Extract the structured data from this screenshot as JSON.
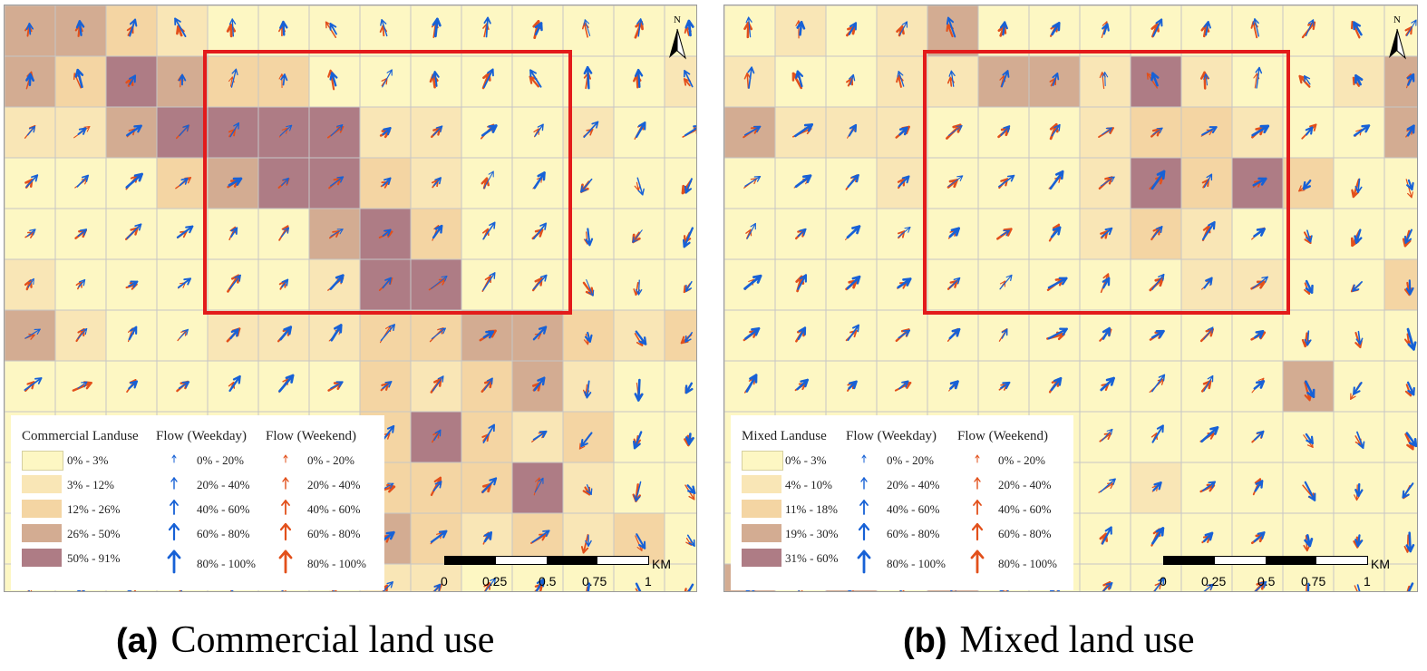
{
  "colors": {
    "landuse": [
      "#fdf7c3",
      "#f9e6b6",
      "#f4d5a3",
      "#d3ac92",
      "#ae7c85"
    ],
    "grid_line": "#c6c6c6",
    "weekday_arrow": "#1761d6",
    "weekend_arrow": "#e2501b",
    "focus_box": "#e31b1b"
  },
  "icons": {
    "north_arrow": "north-arrow-icon",
    "flow_weekday": "blue-arrow-icon",
    "flow_weekend": "orange-arrow-icon"
  },
  "panel_a": {
    "caption_letter": "(a)",
    "caption_text": "Commercial land use",
    "north": "N",
    "legend": {
      "landuse_title": "Commercial Landuse",
      "weekday_title": "Flow (Weekday)",
      "weekend_title": "Flow (Weekend)",
      "landuse_classes": [
        "0% - 3%",
        "3% - 12%",
        "12% - 26%",
        "26% - 50%",
        "50% - 91%"
      ],
      "flow_classes": [
        "0% - 20%",
        "20% - 40%",
        "40% - 60%",
        "60% - 80%",
        "80% - 100%"
      ]
    },
    "scale": {
      "ticks": [
        "0",
        "0.25",
        "0.5",
        "0.75",
        "1"
      ],
      "unit": "KM"
    },
    "landuse_grid": [
      [
        3,
        3,
        2,
        1,
        0,
        0,
        0,
        0,
        0,
        0,
        0,
        0,
        0,
        0
      ],
      [
        3,
        2,
        4,
        3,
        2,
        2,
        0,
        0,
        0,
        0,
        0,
        0,
        0,
        1
      ],
      [
        1,
        1,
        3,
        4,
        4,
        4,
        4,
        1,
        1,
        0,
        0,
        1,
        0,
        0
      ],
      [
        0,
        0,
        0,
        2,
        3,
        4,
        4,
        2,
        1,
        0,
        0,
        0,
        0,
        0
      ],
      [
        0,
        0,
        0,
        0,
        0,
        0,
        3,
        4,
        2,
        0,
        0,
        0,
        0,
        0
      ],
      [
        1,
        0,
        0,
        0,
        0,
        0,
        1,
        4,
        4,
        0,
        0,
        0,
        0,
        0
      ],
      [
        3,
        1,
        0,
        0,
        1,
        1,
        1,
        2,
        2,
        3,
        3,
        2,
        1,
        2
      ],
      [
        0,
        0,
        0,
        0,
        0,
        0,
        0,
        2,
        1,
        2,
        3,
        1,
        0,
        0
      ],
      [
        0,
        0,
        0,
        0,
        0,
        0,
        0,
        2,
        4,
        2,
        1,
        2,
        0,
        0
      ],
      [
        0,
        0,
        0,
        0,
        0,
        0,
        0,
        2,
        2,
        2,
        4,
        1,
        0,
        0
      ],
      [
        0,
        0,
        0,
        0,
        0,
        0,
        0,
        3,
        2,
        1,
        2,
        1,
        2,
        0
      ],
      [
        0,
        0,
        0,
        0,
        0,
        0,
        0,
        1,
        1,
        0,
        0,
        0,
        0,
        0
      ]
    ]
  },
  "panel_b": {
    "caption_letter": "(b)",
    "caption_text": "Mixed land use",
    "north": "N",
    "legend": {
      "landuse_title": "Mixed Landuse",
      "weekday_title": "Flow (Weekday)",
      "weekend_title": "Flow (Weekend)",
      "landuse_classes": [
        "0% - 3%",
        "4% - 10%",
        "11% - 18%",
        "19% - 30%",
        "31% - 60%"
      ],
      "flow_classes": [
        "0% - 20%",
        "20% - 40%",
        "40% - 60%",
        "60% - 80%",
        "80% - 100%"
      ]
    },
    "scale": {
      "ticks": [
        "0",
        "0.25",
        "0.5",
        "0.75",
        "1"
      ],
      "unit": "KM"
    },
    "landuse_grid": [
      [
        0,
        1,
        0,
        1,
        3,
        0,
        0,
        0,
        0,
        0,
        0,
        0,
        0,
        0
      ],
      [
        1,
        0,
        0,
        1,
        1,
        3,
        3,
        1,
        4,
        1,
        0,
        0,
        1,
        3
      ],
      [
        3,
        1,
        1,
        1,
        0,
        0,
        0,
        1,
        2,
        2,
        1,
        0,
        0,
        3
      ],
      [
        0,
        0,
        0,
        1,
        0,
        0,
        0,
        1,
        4,
        2,
        4,
        2,
        0,
        0
      ],
      [
        0,
        0,
        0,
        0,
        0,
        0,
        0,
        1,
        2,
        1,
        0,
        0,
        0,
        0
      ],
      [
        0,
        0,
        0,
        0,
        0,
        0,
        0,
        0,
        0,
        1,
        1,
        0,
        0,
        2
      ],
      [
        0,
        0,
        0,
        0,
        0,
        0,
        0,
        0,
        0,
        0,
        0,
        0,
        0,
        0
      ],
      [
        0,
        0,
        0,
        0,
        0,
        0,
        0,
        0,
        0,
        0,
        0,
        3,
        0,
        0
      ],
      [
        0,
        0,
        0,
        0,
        0,
        0,
        0,
        0,
        0,
        0,
        0,
        0,
        0,
        0
      ],
      [
        0,
        0,
        0,
        0,
        0,
        0,
        0,
        0,
        1,
        0,
        0,
        0,
        0,
        0
      ],
      [
        0,
        0,
        0,
        0,
        0,
        0,
        0,
        0,
        0,
        0,
        0,
        0,
        0,
        0
      ],
      [
        3,
        0,
        3,
        0,
        3,
        0,
        0,
        0,
        0,
        0,
        0,
        0,
        0,
        0
      ]
    ]
  }
}
